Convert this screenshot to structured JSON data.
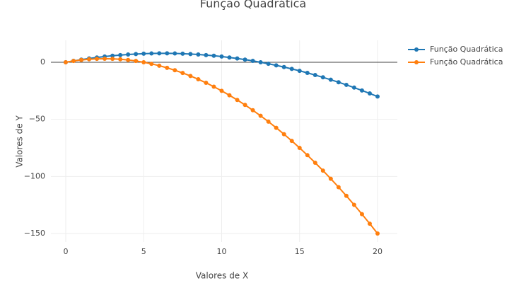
{
  "chart_data": {
    "type": "line",
    "title": "Função Quadrática",
    "xlabel": "Valores de X",
    "ylabel": "Valores de Y",
    "x": [
      0,
      0.5,
      1,
      1.5,
      2,
      2.5,
      3,
      3.5,
      4,
      4.5,
      5,
      5.5,
      6,
      6.5,
      7,
      7.5,
      8,
      8.5,
      9,
      9.5,
      10,
      10.5,
      11,
      11.5,
      12,
      12.5,
      13,
      13.5,
      14,
      14.5,
      15,
      15.5,
      16,
      16.5,
      17,
      17.5,
      18,
      18.5,
      19,
      19.5,
      20
    ],
    "series": [
      {
        "name": "Função Quadrática",
        "color": "#1f77b4",
        "values": [
          0,
          1.2,
          2.3,
          3.3,
          4.2,
          5,
          5.7,
          6.3,
          6.8,
          7.2,
          7.5,
          7.7,
          7.8,
          7.8,
          7.7,
          7.5,
          7.2,
          6.8,
          6.3,
          5.7,
          5,
          4.2,
          3.3,
          2.3,
          1.2,
          0,
          -1.3,
          -2.7,
          -4.2,
          -5.8,
          -7.5,
          -9.3,
          -11.2,
          -13.2,
          -15.3,
          -17.5,
          -19.8,
          -22.2,
          -24.7,
          -27.3,
          -30
        ]
      },
      {
        "name": "Função Quadrática",
        "color": "#ff7f0e",
        "values": [
          0,
          1.125,
          2,
          2.625,
          3,
          3.125,
          3,
          2.625,
          2,
          1.125,
          0,
          -1.375,
          -3,
          -4.875,
          -7,
          -9.375,
          -12,
          -14.875,
          -18,
          -21.375,
          -25,
          -28.875,
          -33,
          -37.375,
          -42,
          -46.875,
          -52,
          -57.375,
          -63,
          -68.875,
          -75,
          -81.375,
          -88,
          -94.875,
          -102,
          -109.375,
          -117,
          -124.875,
          -133,
          -141.375,
          -150
        ]
      }
    ],
    "xlim": [
      -0.95,
      21.27
    ],
    "ylim": [
      -157.4,
      19.2
    ],
    "xticks": [
      0,
      5,
      10,
      15,
      20
    ],
    "yticks": [
      0,
      {
        "value": -50,
        "label": "−50"
      },
      {
        "value": -100,
        "label": "−100"
      },
      {
        "value": -150,
        "label": "−150"
      }
    ],
    "grid": true,
    "legend": "right"
  }
}
